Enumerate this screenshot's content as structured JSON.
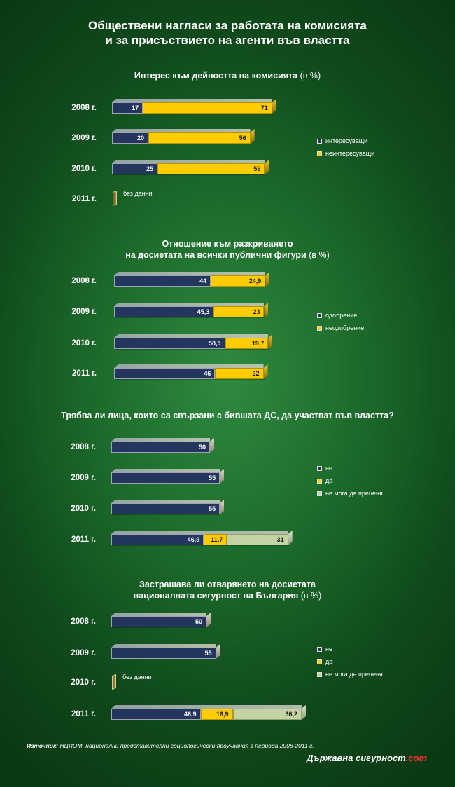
{
  "title": [
    "Обществени нагласи за работата на комисията",
    "и за присъствието на агенти във властта"
  ],
  "colors": {
    "navy": "#25365e",
    "yellow": "#ffcc00",
    "light": "#c3d4a2"
  },
  "chart_data": [
    {
      "type": "bar",
      "title": [
        "Интерес към дейността на комисията"
      ],
      "unit": "(в %)",
      "categories": [
        "2008 г.",
        "2009 г.",
        "2010 г.",
        "2011 г."
      ],
      "series": [
        {
          "name": "интересуващи",
          "values": [
            17,
            20,
            25,
            null
          ],
          "labels": [
            "17",
            "20",
            "25",
            ""
          ]
        },
        {
          "name": "неинтересуващи",
          "values": [
            71,
            56,
            59,
            null
          ],
          "labels": [
            "71",
            "56",
            "59",
            ""
          ]
        }
      ],
      "no_data": [
        false,
        false,
        false,
        true
      ],
      "no_data_label": "без данни"
    },
    {
      "type": "bar",
      "title": [
        "Отношение към разкриването",
        "на  досиетата на всички публични фигури"
      ],
      "unit": "(в %)",
      "categories": [
        "2008 г.",
        "2009 г.",
        "2010 г.",
        "2011 г."
      ],
      "series": [
        {
          "name": "одобрение",
          "values": [
            44,
            45.3,
            50.5,
            46
          ],
          "labels": [
            "44",
            "45,3",
            "50,5",
            "46"
          ]
        },
        {
          "name": "неодобрение",
          "values": [
            24.9,
            23,
            19.7,
            22
          ],
          "labels": [
            "24,9",
            "23",
            "19,7",
            "22"
          ]
        }
      ],
      "no_data": [
        false,
        false,
        false,
        false
      ],
      "no_data_label": ""
    },
    {
      "type": "bar",
      "title": [
        "Трябва ли лица, които са свързани с бившата ДС,  да участват във властта?"
      ],
      "unit": "",
      "categories": [
        "2008 г.",
        "2009 г.",
        "2010 г.",
        "2011 г."
      ],
      "series": [
        {
          "name": "не",
          "values": [
            50,
            55,
            55,
            46.9
          ],
          "labels": [
            "50",
            "55",
            "55",
            "46,9"
          ]
        },
        {
          "name": "да",
          "values": [
            null,
            null,
            null,
            11.7
          ],
          "labels": [
            "",
            "",
            "",
            "11,7"
          ]
        },
        {
          "name": "не мога да преценя",
          "values": [
            null,
            null,
            null,
            31
          ],
          "labels": [
            "",
            "",
            "",
            "31"
          ]
        }
      ],
      "no_data": [
        false,
        false,
        false,
        false
      ],
      "no_data_label": ""
    },
    {
      "type": "bar",
      "title": [
        "Застрашава ли отварянето на досиетата",
        "националната сигурност на България"
      ],
      "unit": "(в %)",
      "categories": [
        "2008 г.",
        "2009 г.",
        "2010 г.",
        "2011 г."
      ],
      "series": [
        {
          "name": "не",
          "values": [
            50,
            55,
            null,
            46.9
          ],
          "labels": [
            "50",
            "55",
            "",
            "46,9"
          ]
        },
        {
          "name": "да",
          "values": [
            null,
            null,
            null,
            16.9
          ],
          "labels": [
            "",
            "",
            "",
            "16,9"
          ]
        },
        {
          "name": "не мога да преценя",
          "values": [
            null,
            null,
            null,
            36.2
          ],
          "labels": [
            "",
            "",
            "",
            "36,2"
          ]
        }
      ],
      "no_data": [
        false,
        false,
        true,
        false
      ],
      "no_data_label": "без данни"
    }
  ],
  "source": {
    "label": "Източник:",
    "text": " НЦИОМ, национални представителни социологически проучвания в периода 2008-2011 г."
  },
  "brand": {
    "main": "Държавна сигурност",
    "suffix": ".com"
  }
}
